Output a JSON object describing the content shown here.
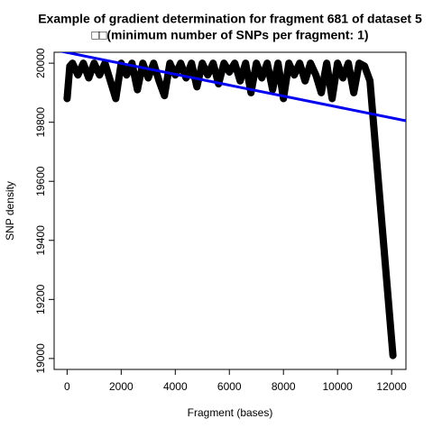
{
  "chart_data": {
    "type": "line",
    "title": "Example of gradient determination for fragment 681 of dataset 5",
    "subtitle": "□□(minimum number of SNPs per fragment: 1)",
    "x_label": "Fragment (bases)",
    "y_label": "SNP density",
    "xlim": [
      -480,
      12530
    ],
    "ylim": [
      18963,
      20037
    ],
    "xticks": [
      0,
      2000,
      4000,
      6000,
      8000,
      10000,
      12000
    ],
    "yticks": [
      19000,
      19200,
      19400,
      19600,
      19800,
      20000
    ],
    "series": [
      {
        "color": "#000000",
        "x": [
          0,
          100,
          200,
          400,
          600,
          800,
          1000,
          1200,
          1400,
          1600,
          1800,
          2000,
          2200,
          2400,
          2600,
          2800,
          3000,
          3200,
          3400,
          3600,
          3800,
          4000,
          4200,
          4400,
          4600,
          4800,
          5000,
          5200,
          5400,
          5600,
          5800,
          6000,
          6200,
          6400,
          6600,
          6800,
          7000,
          7200,
          7400,
          7600,
          7800,
          8000,
          8200,
          8400,
          8600,
          8800,
          9000,
          9200,
          9400,
          9600,
          9800,
          10000,
          10200,
          10400,
          10600,
          10800,
          11000,
          11200,
          12050
        ],
        "values": [
          19880,
          19990,
          20000,
          19960,
          20000,
          19950,
          20000,
          19960,
          20000,
          19940,
          19880,
          20000,
          19960,
          20000,
          19910,
          20000,
          19950,
          20000,
          19940,
          19890,
          20000,
          19960,
          20000,
          19950,
          20000,
          19920,
          20000,
          19960,
          20000,
          19930,
          20000,
          19970,
          20000,
          19940,
          20000,
          19900,
          20000,
          19950,
          20000,
          19910,
          20000,
          19880,
          20000,
          19960,
          20000,
          19940,
          20000,
          19960,
          19900,
          20000,
          19880,
          20000,
          19950,
          20000,
          19900,
          20000,
          19990,
          19940,
          19010
        ]
      },
      {
        "color": "#0000ee",
        "x": [
          -480,
          12530
        ],
        "values": [
          20045,
          19805
        ]
      }
    ]
  }
}
